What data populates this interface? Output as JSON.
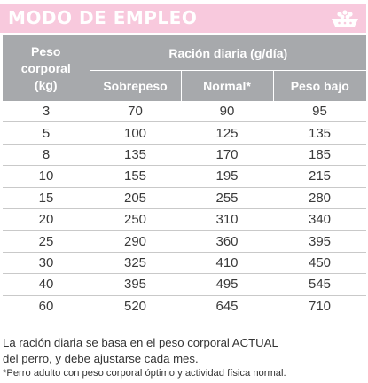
{
  "header": {
    "title": "MODO DE EMPLEO",
    "icon": "dog-food-bowl-icon",
    "colors": {
      "band": "#f8c9dd",
      "table_header": "#a7a9ac"
    }
  },
  "table": {
    "col1_header_lines": [
      "Peso",
      "corporal",
      "(kg)"
    ],
    "group_header": "Ración diaria (g/día)",
    "sub_headers": [
      "Sobrepeso",
      "Normal*",
      "Peso bajo"
    ],
    "rows": [
      [
        "3",
        "70",
        "90",
        "95"
      ],
      [
        "5",
        "100",
        "125",
        "135"
      ],
      [
        "8",
        "135",
        "170",
        "185"
      ],
      [
        "10",
        "155",
        "195",
        "215"
      ],
      [
        "15",
        "205",
        "255",
        "280"
      ],
      [
        "20",
        "250",
        "310",
        "340"
      ],
      [
        "25",
        "290",
        "360",
        "395"
      ],
      [
        "30",
        "325",
        "410",
        "450"
      ],
      [
        "40",
        "395",
        "495",
        "545"
      ],
      [
        "60",
        "520",
        "645",
        "710"
      ]
    ]
  },
  "notes": {
    "line1": "La ración diaria se basa en el peso corporal ACTUAL",
    "line2": "del perro, y debe ajustarse cada mes.",
    "footnote": "*Perro adulto con peso corporal óptimo y actividad física normal."
  }
}
